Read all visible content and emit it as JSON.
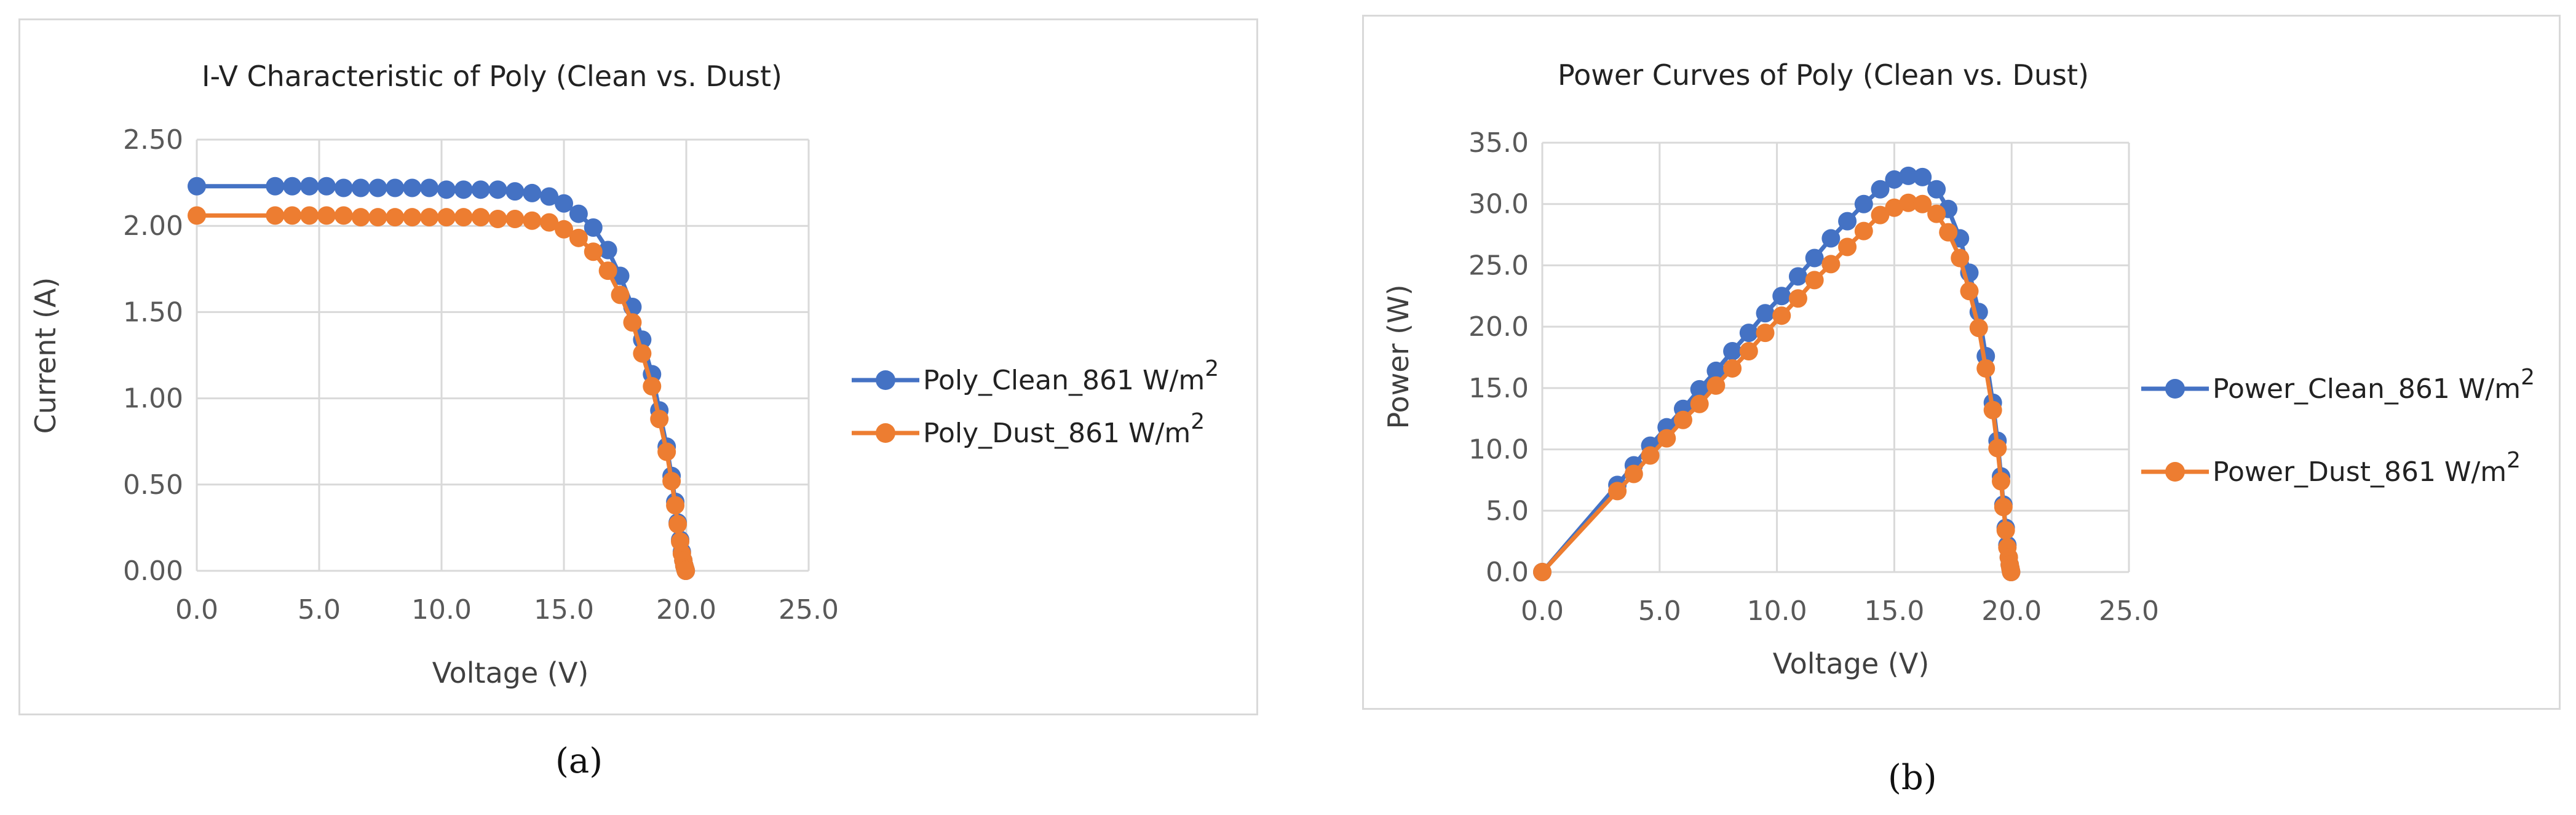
{
  "chart_data": [
    {
      "type": "line",
      "title": "I-V Characteristic of Poly (Clean vs. Dust)",
      "xlabel": "Voltage (V)",
      "ylabel": "Current (A)",
      "xlim": [
        0,
        25
      ],
      "ylim": [
        0,
        2.5
      ],
      "xticks": [
        "0.0",
        "5.0",
        "10.0",
        "15.0",
        "20.0",
        "25.0"
      ],
      "yticks": [
        "0.00",
        "0.50",
        "1.00",
        "1.50",
        "2.00",
        "2.50"
      ],
      "grid": true,
      "legend_position": "right",
      "series": [
        {
          "name": "Poly_Clean_861 W/m",
          "name_sup": "2",
          "color": "#4472c4",
          "x": [
            0.0,
            3.2,
            3.9,
            4.6,
            5.3,
            6.0,
            6.7,
            7.4,
            8.1,
            8.8,
            9.5,
            10.2,
            10.9,
            11.6,
            12.3,
            13.0,
            13.7,
            14.4,
            15.0,
            15.6,
            16.2,
            16.8,
            17.3,
            17.8,
            18.2,
            18.6,
            18.9,
            19.2,
            19.4,
            19.55,
            19.65,
            19.75,
            19.82,
            19.88,
            19.92,
            19.95,
            19.97,
            19.98
          ],
          "y": [
            2.23,
            2.23,
            2.23,
            2.23,
            2.23,
            2.22,
            2.22,
            2.22,
            2.22,
            2.22,
            2.22,
            2.21,
            2.21,
            2.21,
            2.21,
            2.2,
            2.19,
            2.17,
            2.13,
            2.07,
            1.99,
            1.86,
            1.71,
            1.53,
            1.34,
            1.14,
            0.93,
            0.72,
            0.55,
            0.4,
            0.28,
            0.18,
            0.11,
            0.06,
            0.03,
            0.015,
            0.005,
            0.0
          ]
        },
        {
          "name": "Poly_Dust_861 W/m",
          "name_sup": "2",
          "color": "#ed7d31",
          "x": [
            0.0,
            3.2,
            3.9,
            4.6,
            5.3,
            6.0,
            6.7,
            7.4,
            8.1,
            8.8,
            9.5,
            10.2,
            10.9,
            11.6,
            12.3,
            13.0,
            13.7,
            14.4,
            15.0,
            15.6,
            16.2,
            16.8,
            17.3,
            17.8,
            18.2,
            18.6,
            18.9,
            19.2,
            19.4,
            19.55,
            19.65,
            19.75,
            19.82,
            19.88,
            19.92,
            19.95,
            19.97,
            19.98
          ],
          "y": [
            2.06,
            2.06,
            2.06,
            2.06,
            2.06,
            2.06,
            2.05,
            2.05,
            2.05,
            2.05,
            2.05,
            2.05,
            2.05,
            2.05,
            2.04,
            2.04,
            2.03,
            2.02,
            1.98,
            1.93,
            1.85,
            1.74,
            1.6,
            1.44,
            1.26,
            1.07,
            0.88,
            0.69,
            0.52,
            0.38,
            0.27,
            0.17,
            0.1,
            0.06,
            0.03,
            0.015,
            0.005,
            0.0
          ]
        }
      ]
    },
    {
      "type": "line",
      "title": "Power Curves of Poly (Clean vs. Dust)",
      "xlabel": "Voltage (V)",
      "ylabel": "Power (W)",
      "xlim": [
        0,
        25
      ],
      "ylim": [
        0,
        35
      ],
      "xticks": [
        "0.0",
        "5.0",
        "10.0",
        "15.0",
        "20.0",
        "25.0"
      ],
      "yticks": [
        "0.0",
        "5.0",
        "10.0",
        "15.0",
        "20.0",
        "25.0",
        "30.0",
        "35.0"
      ],
      "grid": true,
      "legend_position": "right",
      "series": [
        {
          "name": "Power_Clean_861 W/m",
          "name_sup": "2",
          "color": "#4472c4",
          "x": [
            0.0,
            3.2,
            3.9,
            4.6,
            5.3,
            6.0,
            6.7,
            7.4,
            8.1,
            8.8,
            9.5,
            10.2,
            10.9,
            11.6,
            12.3,
            13.0,
            13.7,
            14.4,
            15.0,
            15.6,
            16.2,
            16.8,
            17.3,
            17.8,
            18.2,
            18.6,
            18.9,
            19.2,
            19.4,
            19.55,
            19.65,
            19.75,
            19.82,
            19.88,
            19.92,
            19.95,
            19.97,
            19.98
          ],
          "y": [
            0.0,
            7.1,
            8.7,
            10.3,
            11.8,
            13.3,
            14.9,
            16.4,
            18.0,
            19.5,
            21.1,
            22.5,
            24.1,
            25.6,
            27.2,
            28.6,
            30.0,
            31.2,
            32.0,
            32.3,
            32.2,
            31.2,
            29.6,
            27.2,
            24.4,
            21.2,
            17.6,
            13.8,
            10.7,
            7.8,
            5.5,
            3.6,
            2.2,
            1.2,
            0.6,
            0.3,
            0.1,
            0.0
          ]
        },
        {
          "name": "Power_Dust_861 W/m",
          "name_sup": "2",
          "color": "#ed7d31",
          "x": [
            0.0,
            3.2,
            3.9,
            4.6,
            5.3,
            6.0,
            6.7,
            7.4,
            8.1,
            8.8,
            9.5,
            10.2,
            10.9,
            11.6,
            12.3,
            13.0,
            13.7,
            14.4,
            15.0,
            15.6,
            16.2,
            16.8,
            17.3,
            17.8,
            18.2,
            18.6,
            18.9,
            19.2,
            19.4,
            19.55,
            19.65,
            19.75,
            19.82,
            19.88,
            19.92,
            19.95,
            19.97,
            19.98
          ],
          "y": [
            0.0,
            6.6,
            8.0,
            9.5,
            10.9,
            12.4,
            13.7,
            15.2,
            16.6,
            18.0,
            19.5,
            20.9,
            22.3,
            23.8,
            25.1,
            26.5,
            27.8,
            29.1,
            29.7,
            30.1,
            30.0,
            29.2,
            27.7,
            25.6,
            22.9,
            19.9,
            16.6,
            13.2,
            10.1,
            7.4,
            5.3,
            3.4,
            2.0,
            1.2,
            0.6,
            0.3,
            0.1,
            0.0
          ]
        }
      ]
    }
  ],
  "captions": {
    "a": "(a)",
    "b": "(b)"
  }
}
